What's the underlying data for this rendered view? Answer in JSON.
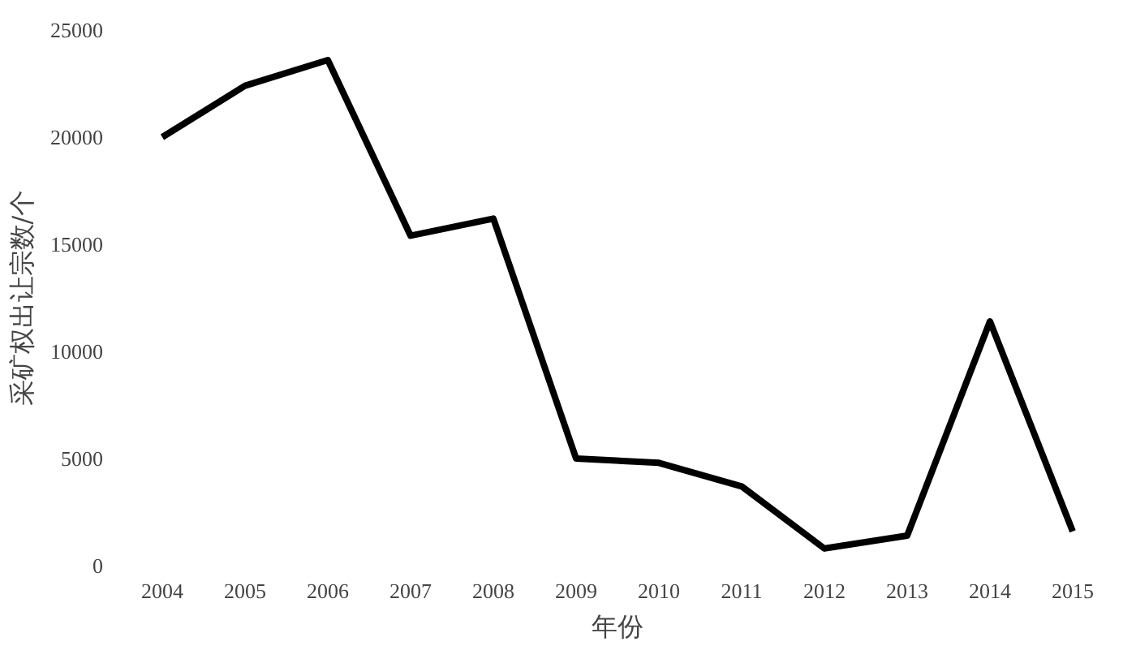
{
  "chart_data": {
    "type": "line",
    "xlabel": "年份",
    "ylabel": "采矿权出让宗数/个",
    "categories": [
      "2004",
      "2005",
      "2006",
      "2007",
      "2008",
      "2009",
      "2010",
      "2011",
      "2012",
      "2013",
      "2014",
      "2015"
    ],
    "series": [
      {
        "color": "#000000",
        "values": [
          20000,
          22400,
          23600,
          15400,
          16200,
          5000,
          4800,
          3700,
          800,
          1400,
          11400,
          1600
        ]
      }
    ],
    "ylim": [
      0,
      25000
    ],
    "yticks": [
      0,
      5000,
      10000,
      15000,
      20000,
      25000
    ],
    "grid": false,
    "marker": "none",
    "line_style": "solid"
  }
}
